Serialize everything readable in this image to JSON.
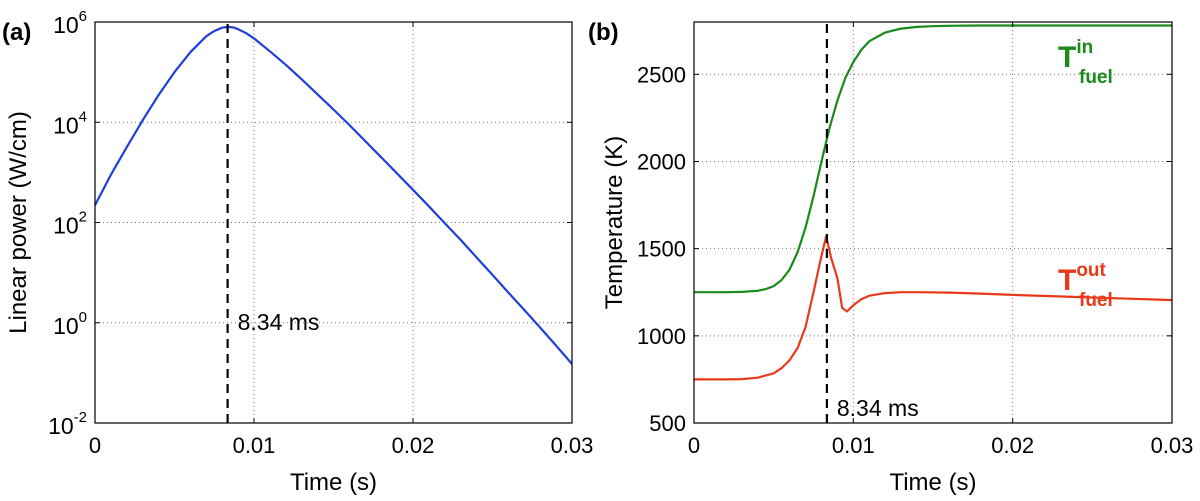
{
  "chart_data": [
    {
      "panel_label": "(a)",
      "type": "line",
      "xlabel": "Time (s)",
      "ylabel": "Linear power (W/cm)",
      "xlim": [
        0,
        0.03
      ],
      "ylim": [
        0.01,
        1000000
      ],
      "yscale": "log",
      "grid": true,
      "xticks": [
        0,
        0.01,
        0.02,
        0.03
      ],
      "xtick_labels": [
        "0",
        "0.01",
        "0.02",
        "0.03"
      ],
      "yticks": [
        0.01,
        1,
        100,
        10000,
        1000000
      ],
      "ytick_bases": [
        "10",
        "10",
        "10",
        "10",
        "10"
      ],
      "ytick_exponents": [
        "-2",
        "0",
        "2",
        "4",
        "6"
      ],
      "series": [
        {
          "color": "#1f3fdb",
          "x": [
            0,
            0.001,
            0.002,
            0.003,
            0.004,
            0.005,
            0.006,
            0.007,
            0.0075,
            0.008,
            0.00834,
            0.0087,
            0.009,
            0.0095,
            0.01,
            0.011,
            0.012,
            0.013,
            0.014,
            0.015,
            0.016,
            0.017,
            0.018,
            0.019,
            0.02,
            0.021,
            0.022,
            0.023,
            0.024,
            0.025,
            0.026,
            0.027,
            0.028,
            0.029,
            0.03
          ],
          "y": [
            220,
            900,
            3200,
            11000,
            35000,
            100000,
            250000,
            520000,
            660000,
            770000,
            800000,
            780000,
            720000,
            600000,
            470000,
            260000,
            140000,
            72000,
            36000,
            18000,
            8800,
            4200,
            2000,
            950,
            450,
            210,
            97,
            45,
            20,
            9,
            4,
            1.8,
            0.8,
            0.35,
            0.15
          ]
        }
      ],
      "annotations": [
        {
          "x": 0.00834,
          "text": "8.34 ms",
          "style": "dashed-vertical-line"
        }
      ]
    },
    {
      "panel_label": "(b)",
      "type": "line",
      "xlabel": "Time (s)",
      "ylabel": "Temperature (K)",
      "xlim": [
        0,
        0.03
      ],
      "ylim": [
        500,
        2800
      ],
      "yscale": "linear",
      "grid": true,
      "xticks": [
        0,
        0.01,
        0.02,
        0.03
      ],
      "xtick_labels": [
        "0",
        "0.01",
        "0.02",
        "0.03"
      ],
      "yticks": [
        500,
        1000,
        1500,
        2000,
        2500
      ],
      "ytick_labels": [
        "500",
        "1000",
        "1500",
        "2000",
        "2500"
      ],
      "series": [
        {
          "name": "T_fuel^in",
          "name_main": "T",
          "name_sup": "in",
          "name_sub": "fuel",
          "color": "#1a8a1a",
          "x": [
            0,
            0.002,
            0.003,
            0.004,
            0.0045,
            0.005,
            0.0055,
            0.006,
            0.0065,
            0.007,
            0.0075,
            0.008,
            0.0085,
            0.009,
            0.0095,
            0.01,
            0.0105,
            0.011,
            0.012,
            0.013,
            0.014,
            0.015,
            0.016,
            0.018,
            0.02,
            0.025,
            0.03
          ],
          "y": [
            1250,
            1250,
            1252,
            1258,
            1268,
            1285,
            1320,
            1380,
            1480,
            1620,
            1800,
            2000,
            2190,
            2350,
            2480,
            2570,
            2640,
            2690,
            2740,
            2762,
            2772,
            2776,
            2778,
            2780,
            2780,
            2780,
            2780
          ]
        },
        {
          "name": "T_fuel^out",
          "name_main": "T",
          "name_sup": "out",
          "name_sub": "fuel",
          "color": "#e83a1a",
          "x": [
            0,
            0.002,
            0.003,
            0.004,
            0.005,
            0.0055,
            0.006,
            0.0065,
            0.007,
            0.0075,
            0.008,
            0.0083,
            0.0086,
            0.009,
            0.0093,
            0.0096,
            0.01,
            0.0105,
            0.011,
            0.012,
            0.013,
            0.014,
            0.016,
            0.018,
            0.02,
            0.025,
            0.03
          ],
          "y": [
            750,
            750,
            752,
            760,
            785,
            815,
            860,
            930,
            1050,
            1250,
            1460,
            1570,
            1450,
            1330,
            1160,
            1140,
            1175,
            1210,
            1230,
            1245,
            1250,
            1250,
            1248,
            1242,
            1235,
            1220,
            1205
          ]
        }
      ],
      "annotations": [
        {
          "x": 0.00834,
          "text": "8.34 ms",
          "style": "dashed-vertical-line"
        }
      ]
    }
  ]
}
